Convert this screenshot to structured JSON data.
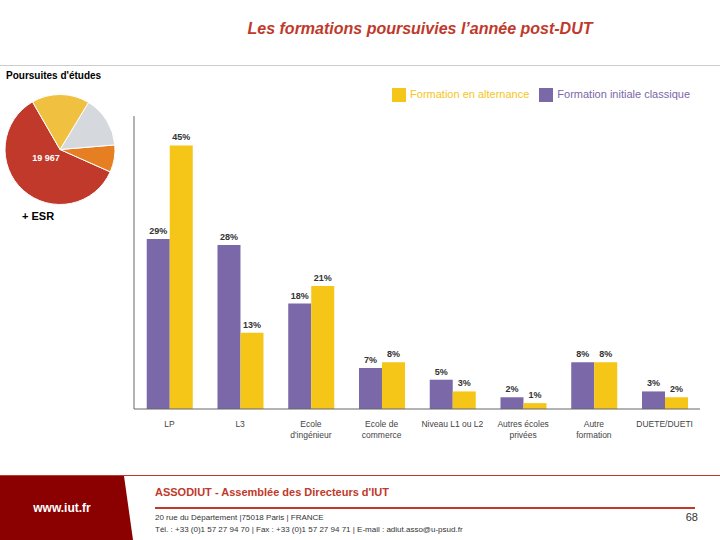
{
  "chart_data": [
    {
      "type": "bar",
      "title": "Les formations poursuivies l’année post-DUT",
      "categories": [
        "LP",
        "L3",
        "Ecole\nd'ingénieur",
        "Ecole de\ncommerce",
        "Niveau L1 ou L2",
        "Autres écoles\nprivées",
        "Autre\nformation",
        "DUETE/DUETI"
      ],
      "series": [
        {
          "name": "Formation initiale classique",
          "color": "#7B68A8",
          "values": [
            29,
            28,
            18,
            7,
            5,
            2,
            8,
            3
          ],
          "value_labels": [
            "29%",
            "28%",
            "18%",
            "7%",
            "5%",
            "2%",
            "8%",
            "3%"
          ]
        },
        {
          "name": "Formation en alternance",
          "color": "#F5C518",
          "values": [
            45,
            13,
            21,
            8,
            3,
            1,
            8,
            2
          ],
          "value_labels": [
            "45%",
            "13%",
            "21%",
            "8%",
            "3%",
            "1%",
            "8%",
            "2%"
          ]
        }
      ],
      "ylim": [
        0,
        50
      ],
      "grid": false,
      "legend": "top",
      "data_labels": true,
      "tick_labels": "x",
      "annotations": [
        "www.iut.fr",
        "ASSODIUT - Assemblée des Directeurs d'IUT",
        "20 rue du Département |75018 Paris | FRANCE",
        "Tél. : +33 (0)1 57 27 94 70 | Fax : +33 (0)1 57 27 94 71 | E-mail : adiut.asso@u-psud.fr",
        "68"
      ]
    },
    {
      "type": "pie",
      "title": "Poursuites d'études",
      "values": [
        60,
        8,
        15,
        17
      ],
      "colors": [
        "#C0392B",
        "#E67E22",
        "#D5D8DC",
        "#F0C040"
      ],
      "annotations": [
        "19 967",
        "+ ESR"
      ]
    }
  ]
}
